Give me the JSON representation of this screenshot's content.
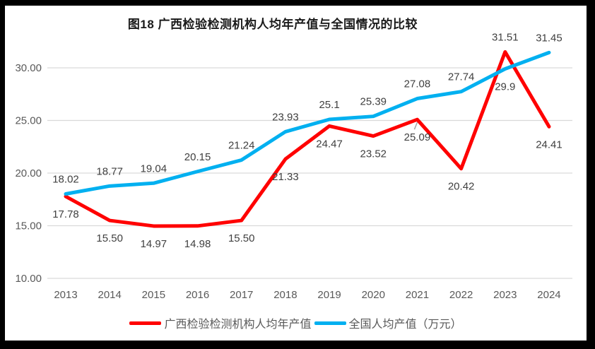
{
  "frame": {
    "background_color": "#000000",
    "panel_color": "#ffffff"
  },
  "chart_data": {
    "type": "line",
    "title": "图18 广西检验检测机构人均年产值与全国情况的比较",
    "categories": [
      "2013",
      "2014",
      "2015",
      "2016",
      "2017",
      "2018",
      "2019",
      "2020",
      "2021",
      "2022",
      "2023",
      "2024"
    ],
    "y_ticks": [
      "10.00",
      "15.00",
      "20.00",
      "25.00",
      "30.00"
    ],
    "ylim": [
      10,
      32.5
    ],
    "grid": true,
    "legend_position": "bottom",
    "xlabel": "",
    "ylabel": "",
    "series": [
      {
        "name": "广西检验检测机构人均年产值",
        "color": "#FF0000",
        "values": [
          17.78,
          15.5,
          14.97,
          14.98,
          15.5,
          21.33,
          24.47,
          23.52,
          25.09,
          20.42,
          31.51,
          24.41
        ],
        "labels": [
          "17.78",
          "15.50",
          "14.97",
          "14.98",
          "15.50",
          "21.33",
          "24.47",
          "23.52",
          "25.09",
          "20.42",
          "31.51",
          "24.41"
        ],
        "label_placement": "below",
        "label_flip_indices": [
          10
        ]
      },
      {
        "name": "全国人均产值（万元）",
        "color": "#00B0F0",
        "values": [
          18.02,
          18.77,
          19.04,
          20.15,
          21.24,
          23.93,
          25.1,
          25.39,
          27.08,
          27.74,
          29.9,
          31.45
        ],
        "labels": [
          "18.02",
          "18.77",
          "19.04",
          "20.15",
          "21.24",
          "23.93",
          "25.1",
          "25.39",
          "27.08",
          "27.74",
          "29.9",
          "31.45"
        ],
        "label_placement": "above",
        "label_flip_indices": [
          10
        ]
      }
    ],
    "styles": {
      "gridline_color": "#D9D9D9",
      "axis_label_color": "#595959",
      "data_label_color": "#404040",
      "title_color": "#1a1a1a"
    }
  }
}
